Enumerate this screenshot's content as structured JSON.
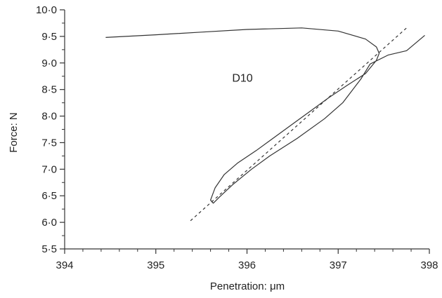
{
  "chart_data": {
    "type": "line",
    "xlabel": "Penetration: μm",
    "ylabel": "Force: N",
    "xlim": [
      394,
      398
    ],
    "ylim": [
      5.5,
      10.0
    ],
    "x_ticks": [
      {
        "value": 394,
        "label": "394"
      },
      {
        "value": 395,
        "label": "395"
      },
      {
        "value": 396,
        "label": "396"
      },
      {
        "value": 397,
        "label": "397"
      },
      {
        "value": 398,
        "label": "398"
      }
    ],
    "y_ticks": [
      {
        "value": 5.5,
        "label": "5·5"
      },
      {
        "value": 6.0,
        "label": "6·0"
      },
      {
        "value": 6.5,
        "label": "6·5"
      },
      {
        "value": 7.0,
        "label": "7·0"
      },
      {
        "value": 7.5,
        "label": "7·5"
      },
      {
        "value": 8.0,
        "label": "8·0"
      },
      {
        "value": 8.5,
        "label": "8·5"
      },
      {
        "value": 9.0,
        "label": "9·0"
      },
      {
        "value": 9.5,
        "label": "9·5"
      },
      {
        "value": 10.0,
        "label": "10·0"
      }
    ],
    "grid": false,
    "annotations": [
      {
        "text": "D10",
        "x": 395.95,
        "y": 8.65
      }
    ],
    "series": [
      {
        "style": "solid",
        "color": "#333333",
        "x": [
          394.45,
          395.0,
          395.5,
          396.0,
          396.6,
          397.0,
          397.3,
          397.42,
          397.45,
          397.42,
          397.3,
          397.1,
          396.9,
          396.7,
          396.5,
          396.3,
          396.1,
          395.9,
          395.75,
          395.65,
          395.6,
          395.63,
          395.7,
          395.85,
          396.05,
          396.25,
          396.55,
          396.85,
          397.05,
          397.25,
          397.35,
          397.55,
          397.75,
          397.95
        ],
        "y": [
          9.48,
          9.53,
          9.58,
          9.63,
          9.66,
          9.6,
          9.45,
          9.3,
          9.18,
          9.05,
          8.8,
          8.58,
          8.35,
          8.1,
          7.85,
          7.6,
          7.35,
          7.12,
          6.9,
          6.65,
          6.42,
          6.36,
          6.48,
          6.72,
          7.0,
          7.25,
          7.58,
          7.95,
          8.25,
          8.7,
          8.98,
          9.15,
          9.23,
          9.52
        ]
      },
      {
        "style": "dashed",
        "color": "#333333",
        "x": [
          395.38,
          397.75
        ],
        "y": [
          6.03,
          9.66
        ]
      }
    ]
  }
}
